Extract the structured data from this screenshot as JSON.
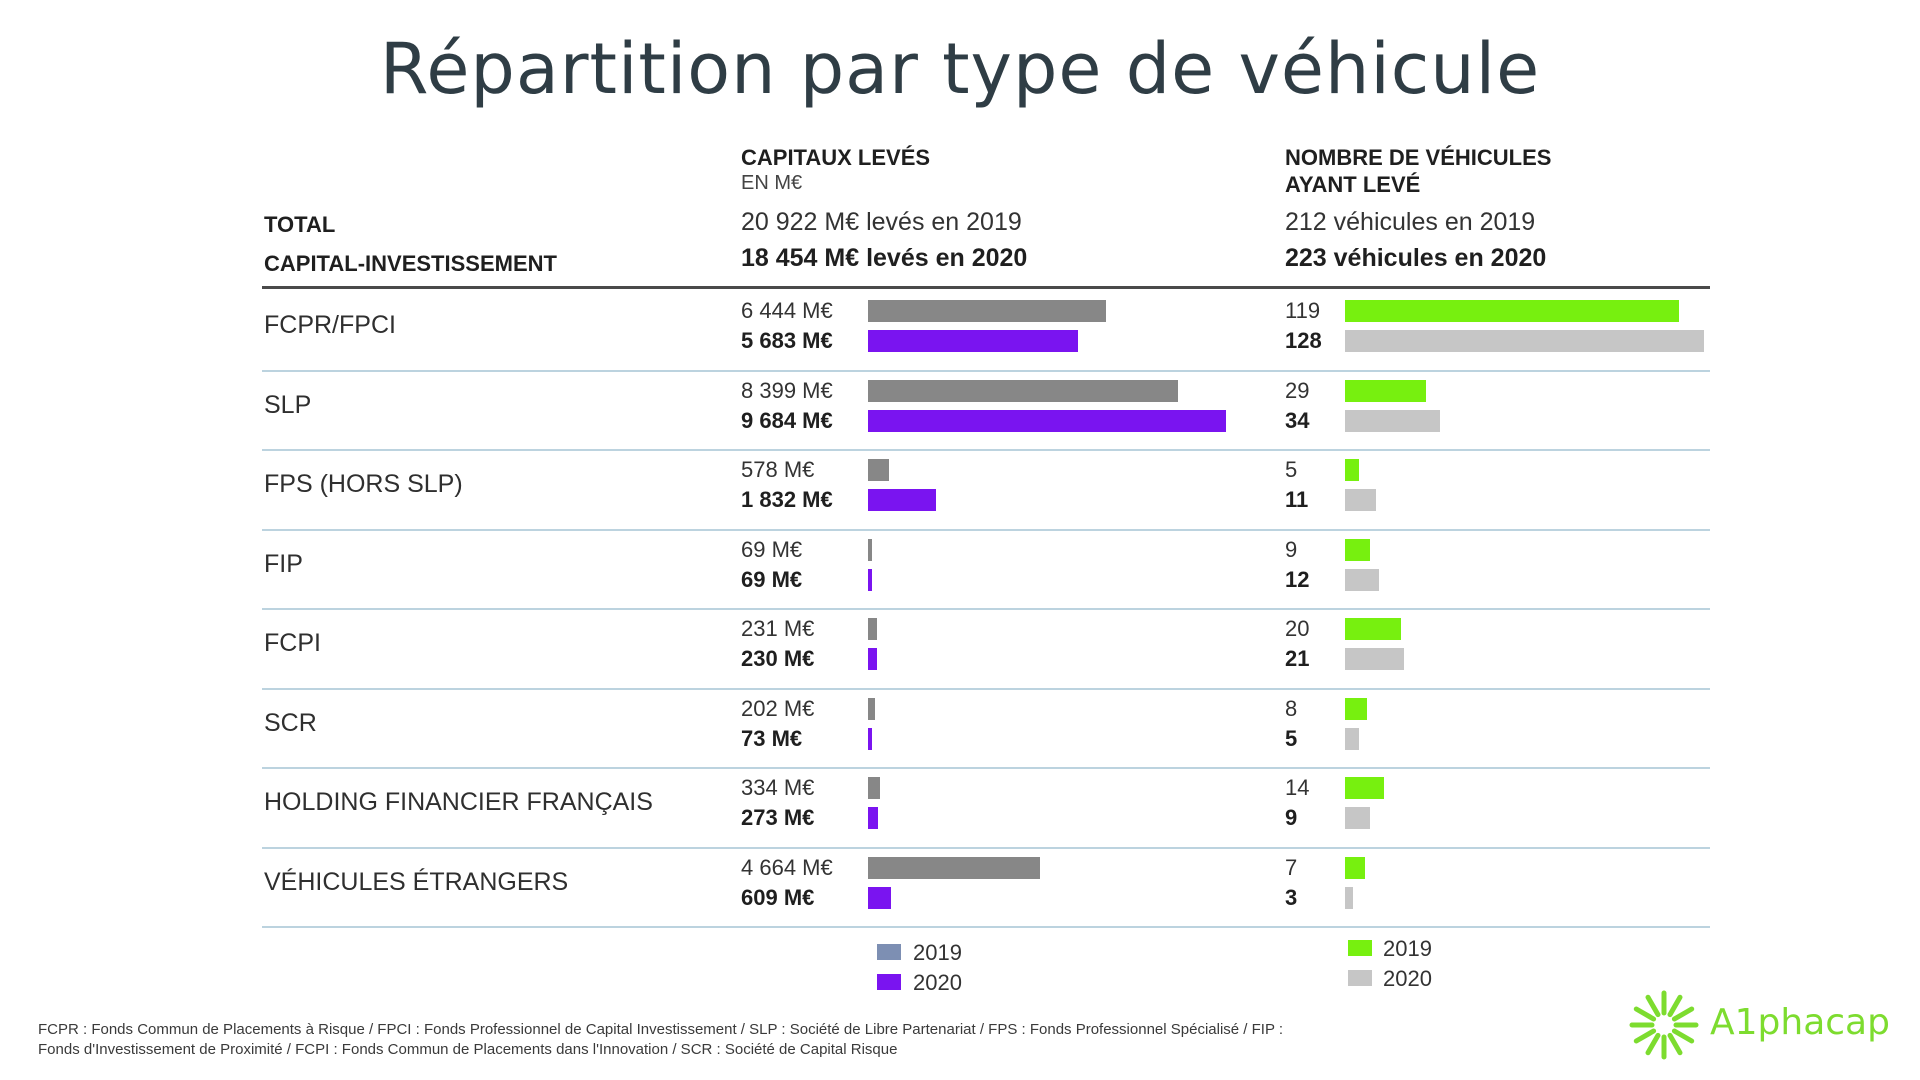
{
  "title": "Répartition par type de véhicule",
  "total_label": [
    "TOTAL",
    "CAPITAL-INVESTISSEMENT"
  ],
  "capitaux_header": {
    "line1": "CAPITAUX LEVÉS",
    "line2": "EN M€",
    "total_2019": "20 922 M€ levés en 2019",
    "total_2020": "18 454 M€ levés en 2020"
  },
  "vehicules_header": {
    "line1": "NOMBRE DE VÉHICULES",
    "line2": "AYANT LEVÉ",
    "total_2019": "212 véhicules en 2019",
    "total_2020": "223 véhicules en 2020"
  },
  "colors": {
    "cap_2019": "#878787",
    "cap_2020": "#7a14f0",
    "cap_2019_legend": "#7d8fb3",
    "veh_2019": "#77f00f",
    "veh_2020": "#c6c6c6",
    "logo": "#7ddc2f"
  },
  "legend": {
    "capitaux": [
      "2019",
      "2020"
    ],
    "vehicules": [
      "2019",
      "2020"
    ]
  },
  "chart_data": [
    {
      "type": "bar",
      "title": "CAPITAUX LEVÉS EN M€",
      "categories": [
        "FCPR/FPCI",
        "SLP",
        "FPS (HORS SLP)",
        "FIP",
        "FCPI",
        "SCR",
        "HOLDING FINANCIER FRANÇAIS",
        "VÉHICULES ÉTRANGERS"
      ],
      "series": [
        {
          "name": "2019",
          "values": [
            6444,
            8399,
            578,
            69,
            231,
            202,
            334,
            4664
          ],
          "labels": [
            "6 444 M€",
            "8 399 M€",
            "578 M€",
            "69 M€",
            "231 M€",
            "202 M€",
            "334 M€",
            "4 664 M€"
          ]
        },
        {
          "name": "2020",
          "values": [
            5683,
            9684,
            1832,
            69,
            230,
            73,
            273,
            609
          ],
          "labels": [
            "5 683 M€",
            "9 684 M€",
            "1 832 M€",
            "69 M€",
            "230 M€",
            "73 M€",
            "273 M€",
            "609 M€"
          ]
        }
      ]
    },
    {
      "type": "bar",
      "title": "NOMBRE DE VÉHICULES AYANT LEVÉ",
      "categories": [
        "FCPR/FPCI",
        "SLP",
        "FPS (HORS SLP)",
        "FIP",
        "FCPI",
        "SCR",
        "HOLDING FINANCIER FRANÇAIS",
        "VÉHICULES ÉTRANGERS"
      ],
      "series": [
        {
          "name": "2019",
          "values": [
            119,
            29,
            5,
            9,
            20,
            8,
            14,
            7
          ],
          "labels": [
            "119",
            "29",
            "5",
            "9",
            "20",
            "8",
            "14",
            "7"
          ]
        },
        {
          "name": "2020",
          "values": [
            128,
            34,
            11,
            12,
            21,
            5,
            9,
            3
          ],
          "labels": [
            "128",
            "34",
            "11",
            "12",
            "21",
            "5",
            "9",
            "3"
          ]
        }
      ]
    }
  ],
  "footnote": [
    "FCPR : Fonds Commun de Placements à Risque / FPCI : Fonds Professionnel de Capital Investissement / SLP : Société de Libre Partenariat / FPS : Fonds Professionnel Spécialisé / FIP :",
    "Fonds d'Investissement de Proximité / FCPI : Fonds Commun de Placements dans l'Innovation / SCR : Société de Capital Risque"
  ],
  "logo": "A1phacap"
}
